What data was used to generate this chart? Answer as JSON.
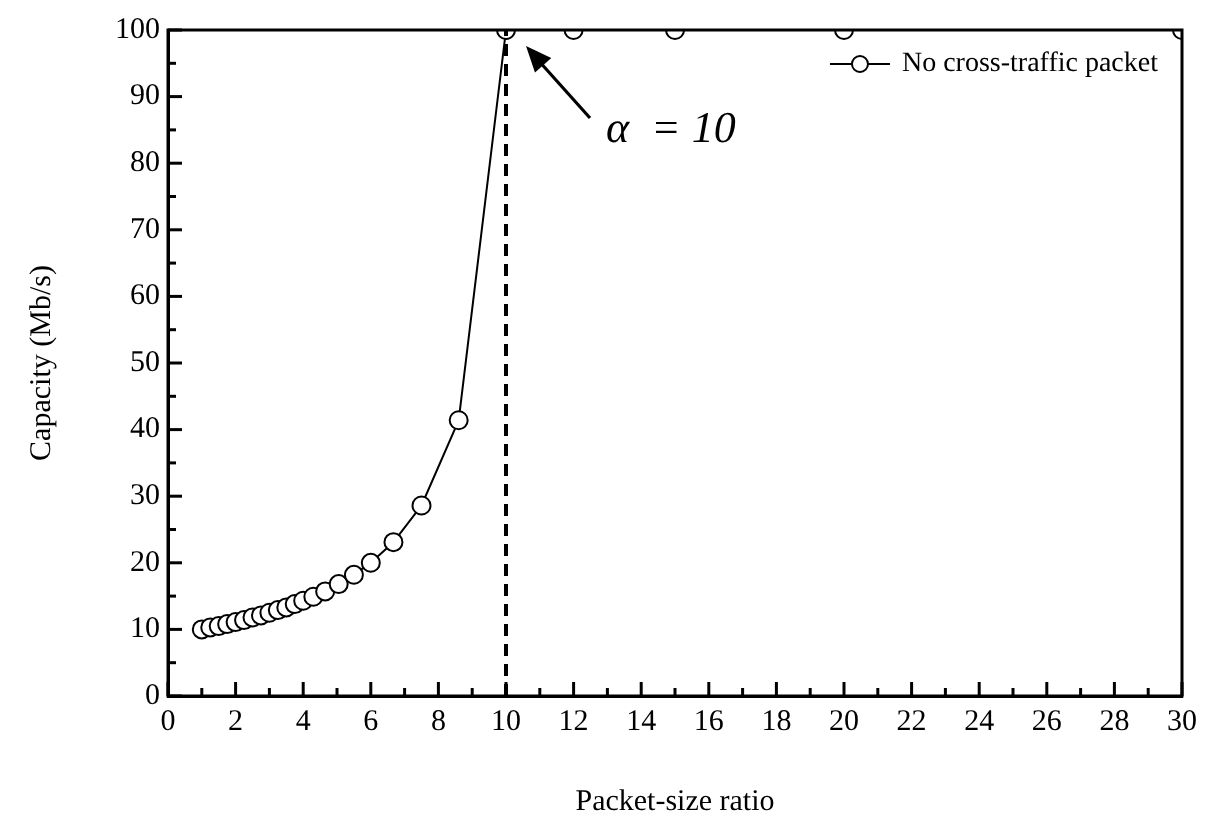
{
  "chart_data": {
    "type": "line",
    "xlabel": "Packet-size ratio",
    "ylabel": "Capacity (Mb/s)",
    "series": [
      {
        "name": "No cross-traffic packet",
        "color": "#000000",
        "x": [
          1,
          1.25,
          1.5,
          1.75,
          2,
          2.25,
          2.5,
          2.75,
          3,
          3.25,
          3.5,
          3.75,
          4,
          4.3,
          4.65,
          5.05,
          5.5,
          6,
          6.67,
          7.5,
          8.6,
          10,
          12,
          15,
          20,
          30
        ],
        "values": [
          10,
          10.3,
          10.5,
          10.8,
          11.1,
          11.4,
          11.8,
          12.1,
          12.5,
          12.9,
          13.3,
          13.8,
          14.3,
          14.9,
          15.7,
          16.8,
          18.2,
          20,
          23.1,
          28.6,
          41.4,
          100,
          100,
          100,
          100,
          100
        ]
      }
    ],
    "xlim": [
      0,
      30
    ],
    "ylim": [
      0,
      100
    ],
    "xticks": [
      0,
      {
        "value": 1,
        "label": null
      },
      2,
      {
        "value": 3,
        "label": null
      },
      4,
      {
        "value": 5,
        "label": null
      },
      6,
      {
        "value": 7,
        "label": null
      },
      8,
      {
        "value": 9,
        "label": null
      },
      10,
      {
        "value": 11,
        "label": null
      },
      12,
      {
        "value": 13,
        "label": null
      },
      14,
      {
        "value": 15,
        "label": null
      },
      16,
      {
        "value": 17,
        "label": null
      },
      18,
      {
        "value": 19,
        "label": null
      },
      20,
      {
        "value": 21,
        "label": null
      },
      22,
      {
        "value": 23,
        "label": null
      },
      24,
      {
        "value": 25,
        "label": null
      },
      26,
      {
        "value": 27,
        "label": null
      },
      28,
      {
        "value": 29,
        "label": null
      },
      30
    ],
    "yticks": [
      0,
      {
        "value": 5,
        "label": null
      },
      10,
      {
        "value": 15,
        "label": null
      },
      20,
      {
        "value": 25,
        "label": null
      },
      30,
      {
        "value": 35,
        "label": null
      },
      40,
      {
        "value": 45,
        "label": null
      },
      50,
      {
        "value": 55,
        "label": null
      },
      60,
      {
        "value": 65,
        "label": null
      },
      70,
      {
        "value": 75,
        "label": null
      },
      80,
      {
        "value": 85,
        "label": null
      },
      90,
      {
        "value": 95,
        "label": null
      },
      100
    ],
    "ref_lines": [
      {
        "axis": "x",
        "value": 10,
        "line_style": "dashed",
        "color": "#000000"
      }
    ],
    "annotations": [
      {
        "text": "α  = 10",
        "x": 10,
        "y": 100
      }
    ],
    "grid": false,
    "legend": "top right",
    "marker": "circle",
    "line_style": "solid"
  }
}
